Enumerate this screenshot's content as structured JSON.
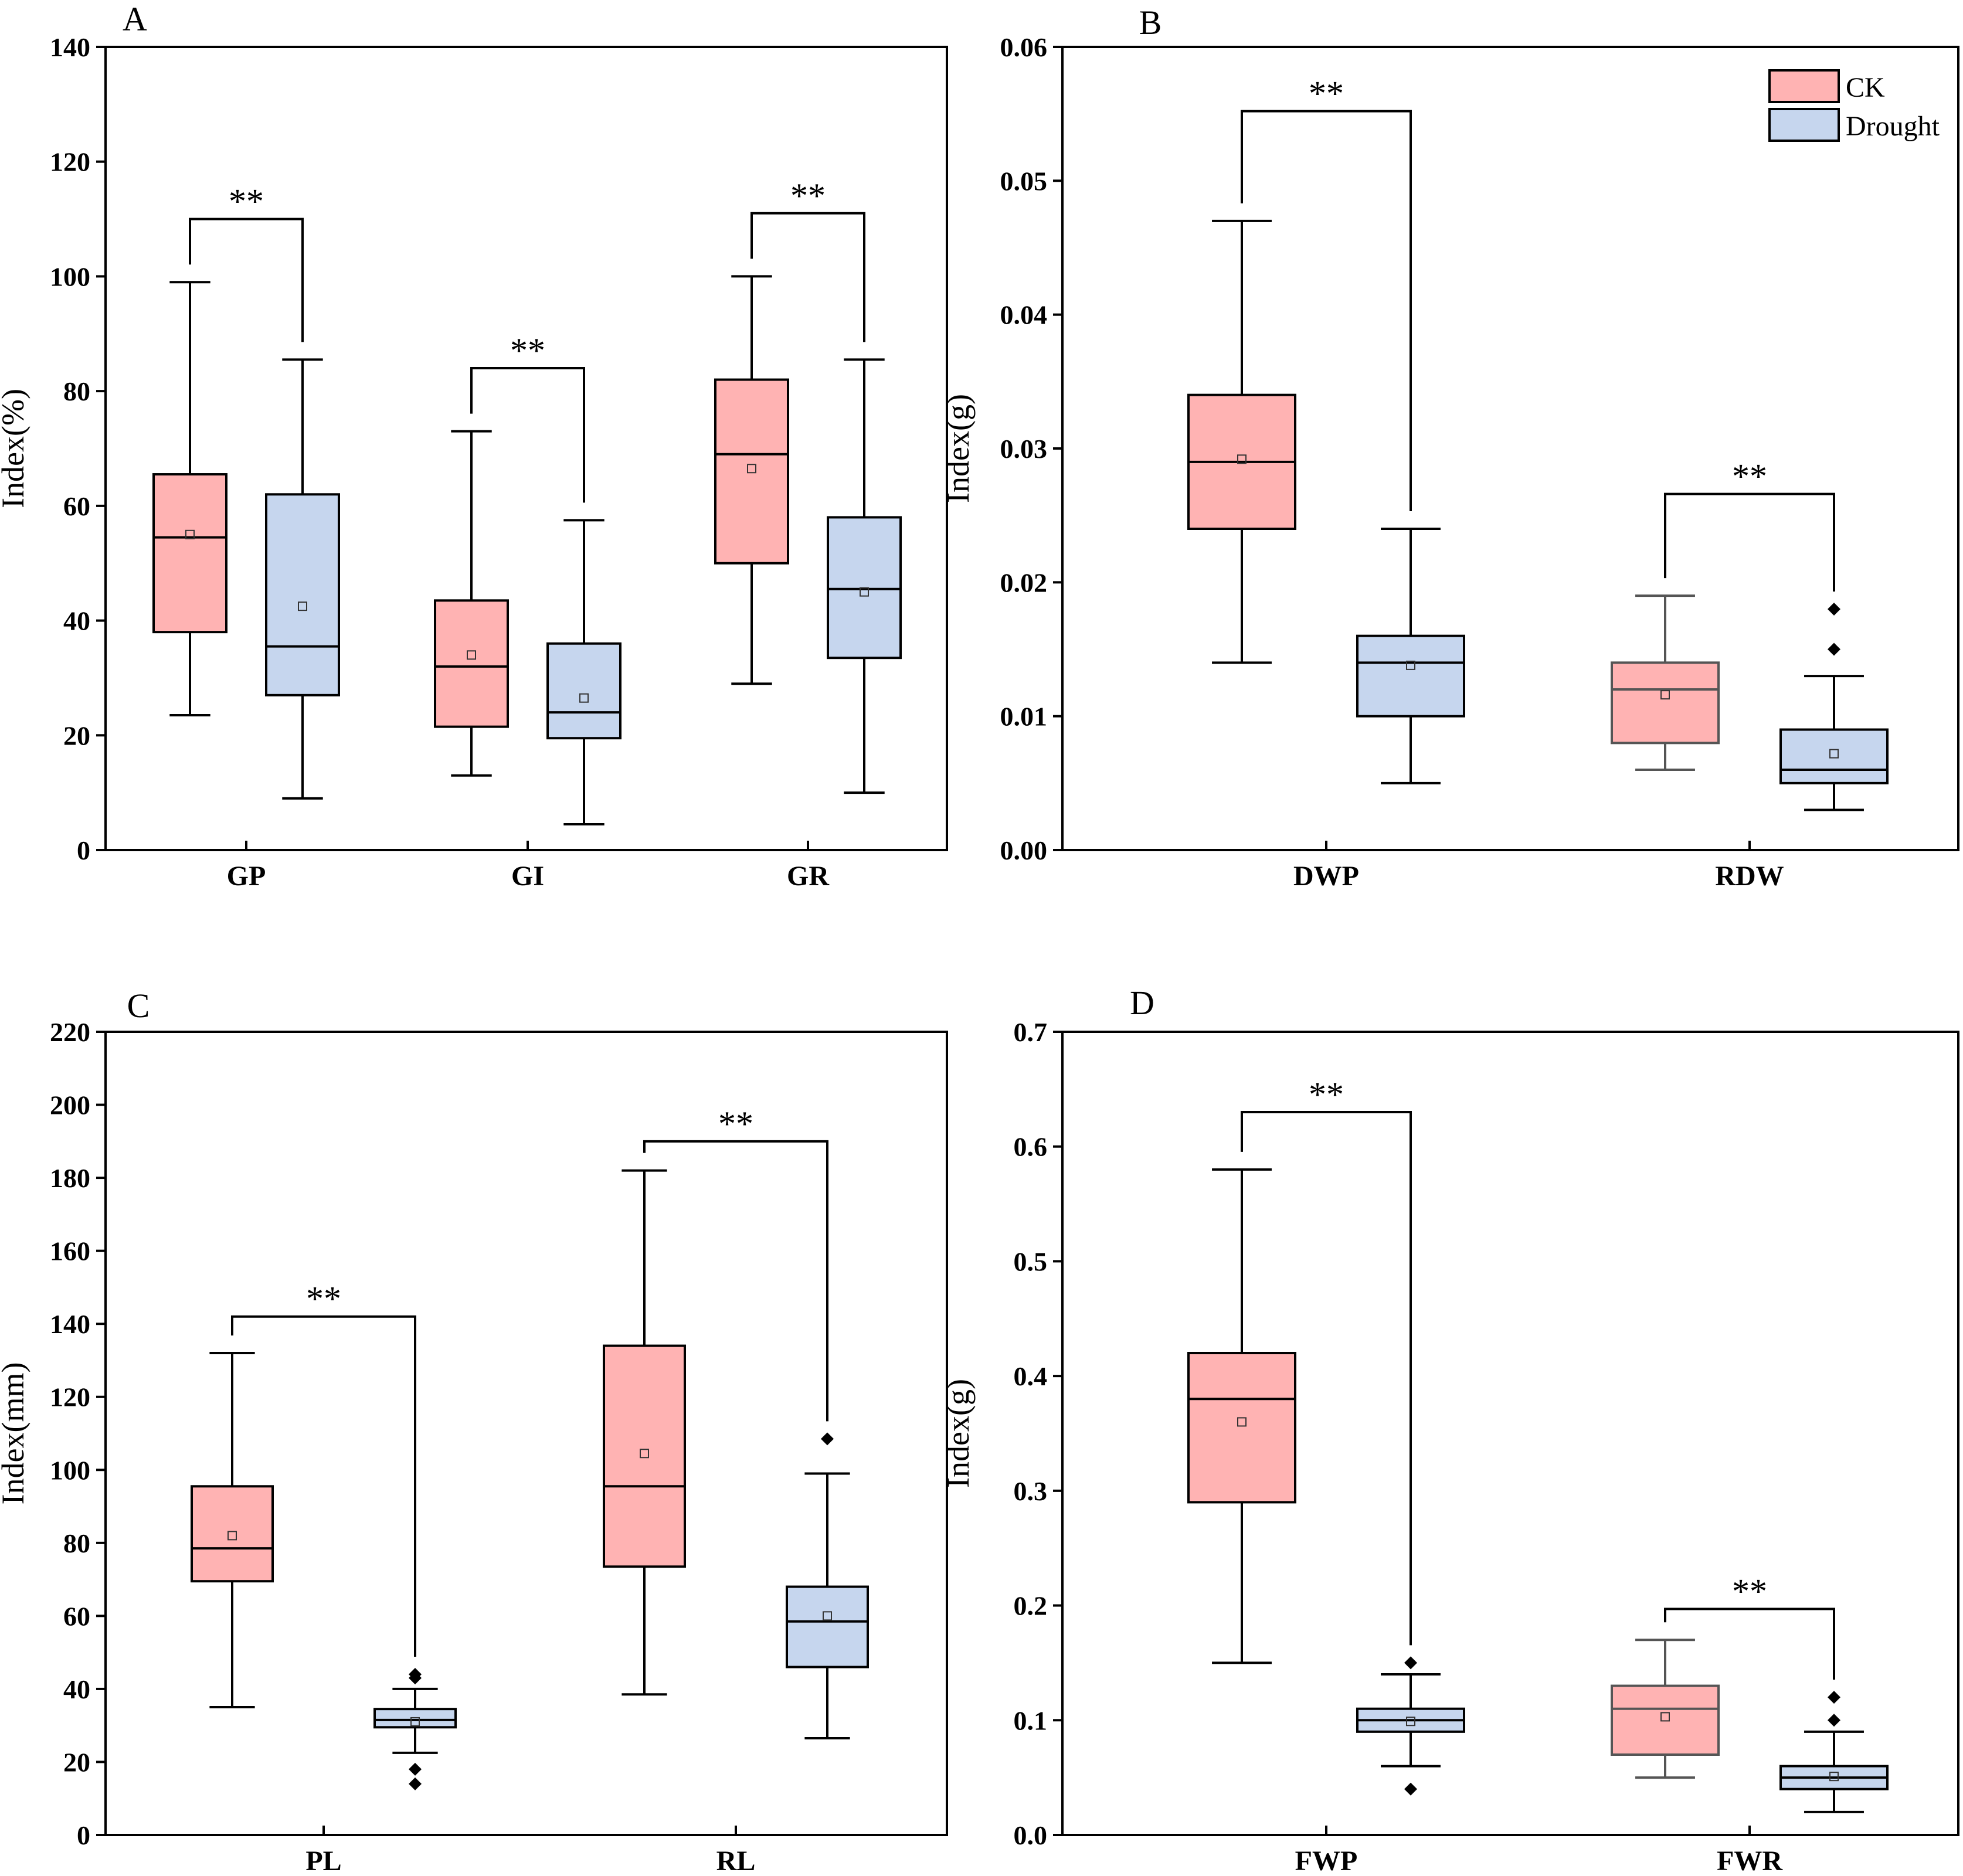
{
  "colors": {
    "ck": "#ffb3b3",
    "drought": "#c6d6ee",
    "line": "#000000",
    "rdw_fwr_ck_border": "#555555"
  },
  "legend": {
    "ck_label": "CK",
    "drought_label": "Drought"
  },
  "chart_data": [
    {
      "type": "box",
      "panel": "A",
      "ylabel": "Index(%)",
      "ylim": [
        0,
        140
      ],
      "yticks": [
        0,
        20,
        40,
        60,
        80,
        100,
        120,
        140
      ],
      "ytick_labels": [
        "0",
        "20",
        "40",
        "60",
        "80",
        "100",
        "120",
        "140"
      ],
      "categories": [
        "GP",
        "GI",
        "GR"
      ],
      "series": [
        {
          "name": "CK",
          "boxes": [
            {
              "min": 23.5,
              "q1": 38,
              "median": 54.5,
              "q3": 65.5,
              "max": 99,
              "mean": 55,
              "outliers": []
            },
            {
              "min": 13,
              "q1": 21.5,
              "median": 32,
              "q3": 43.5,
              "max": 73,
              "mean": 34,
              "outliers": []
            },
            {
              "min": 29,
              "q1": 50,
              "median": 69,
              "q3": 82,
              "max": 100,
              "mean": 66.5,
              "outliers": []
            }
          ]
        },
        {
          "name": "Drought",
          "boxes": [
            {
              "min": 9,
              "q1": 27,
              "median": 35.5,
              "q3": 62,
              "max": 85.5,
              "mean": 42.5,
              "outliers": []
            },
            {
              "min": 4.5,
              "q1": 19.5,
              "median": 24,
              "q3": 36,
              "max": 57.5,
              "mean": 26.5,
              "outliers": []
            },
            {
              "min": 10,
              "q1": 33.5,
              "median": 45.5,
              "q3": 58,
              "max": 85.5,
              "mean": 45,
              "outliers": []
            }
          ]
        }
      ],
      "significance": [
        {
          "label": "**",
          "bar_value": 110
        },
        {
          "label": "**",
          "bar_value": 84
        },
        {
          "label": "**",
          "bar_value": 111
        }
      ]
    },
    {
      "type": "box",
      "panel": "B",
      "ylabel": "Index(g)",
      "ylim": [
        0,
        0.06
      ],
      "yticks": [
        0,
        0.01,
        0.02,
        0.03,
        0.04,
        0.05,
        0.06
      ],
      "ytick_labels": [
        "0.00",
        "0.01",
        "0.02",
        "0.03",
        "0.04",
        "0.05",
        "0.06"
      ],
      "categories": [
        "DWP",
        "RDW"
      ],
      "legend_position": "top-right",
      "series": [
        {
          "name": "CK",
          "boxes": [
            {
              "min": 0.014,
              "q1": 0.024,
              "median": 0.029,
              "q3": 0.034,
              "max": 0.047,
              "mean": 0.0292,
              "outliers": []
            },
            {
              "min": 0.006,
              "q1": 0.008,
              "median": 0.012,
              "q3": 0.014,
              "max": 0.019,
              "mean": 0.0116,
              "outliers": []
            }
          ]
        },
        {
          "name": "Drought",
          "boxes": [
            {
              "min": 0.005,
              "q1": 0.01,
              "median": 0.014,
              "q3": 0.016,
              "max": 0.024,
              "mean": 0.0138,
              "outliers": []
            },
            {
              "min": 0.003,
              "q1": 0.005,
              "median": 0.006,
              "q3": 0.009,
              "max": 0.013,
              "mean": 0.0072,
              "outliers": [
                0.015,
                0.018
              ]
            }
          ]
        }
      ],
      "significance": [
        {
          "label": "**",
          "bar_value": 0.0552
        },
        {
          "label": "**",
          "bar_value": 0.0266
        }
      ]
    },
    {
      "type": "box",
      "panel": "C",
      "ylabel": "Index(mm)",
      "ylim": [
        0,
        220
      ],
      "yticks": [
        0,
        20,
        40,
        60,
        80,
        100,
        120,
        140,
        160,
        180,
        200,
        220
      ],
      "ytick_labels": [
        "0",
        "20",
        "40",
        "60",
        "80",
        "100",
        "120",
        "140",
        "160",
        "180",
        "200",
        "220"
      ],
      "categories": [
        "PL",
        "RL"
      ],
      "series": [
        {
          "name": "CK",
          "boxes": [
            {
              "min": 35,
              "q1": 69.5,
              "median": 78.5,
              "q3": 95.5,
              "max": 132,
              "mean": 82,
              "outliers": []
            },
            {
              "min": 38.5,
              "q1": 73.5,
              "median": 95.5,
              "q3": 134,
              "max": 182,
              "mean": 104.5,
              "outliers": []
            }
          ]
        },
        {
          "name": "Drought",
          "boxes": [
            {
              "min": 22.5,
              "q1": 29.5,
              "median": 31.5,
              "q3": 34.5,
              "max": 40,
              "mean": 31,
              "outliers": [
                14,
                18,
                43,
                44
              ]
            },
            {
              "min": 26.5,
              "q1": 46,
              "median": 58.5,
              "q3": 68,
              "max": 99,
              "mean": 60,
              "outliers": [
                108.5
              ]
            }
          ]
        }
      ],
      "significance": [
        {
          "label": "**",
          "bar_value": 142
        },
        {
          "label": "**",
          "bar_value": 190
        }
      ]
    },
    {
      "type": "box",
      "panel": "D",
      "ylabel": "Index(g)",
      "ylim": [
        0,
        0.7
      ],
      "yticks": [
        0,
        0.1,
        0.2,
        0.3,
        0.4,
        0.5,
        0.6,
        0.7
      ],
      "ytick_labels": [
        "0.0",
        "0.1",
        "0.2",
        "0.3",
        "0.4",
        "0.5",
        "0.6",
        "0.7"
      ],
      "categories": [
        "FWP",
        "FWR"
      ],
      "series": [
        {
          "name": "CK",
          "boxes": [
            {
              "min": 0.15,
              "q1": 0.29,
              "median": 0.38,
              "q3": 0.42,
              "max": 0.58,
              "mean": 0.36,
              "outliers": []
            },
            {
              "min": 0.05,
              "q1": 0.07,
              "median": 0.11,
              "q3": 0.13,
              "max": 0.17,
              "mean": 0.103,
              "outliers": []
            }
          ]
        },
        {
          "name": "Drought",
          "boxes": [
            {
              "min": 0.06,
              "q1": 0.09,
              "median": 0.1,
              "q3": 0.11,
              "max": 0.14,
              "mean": 0.099,
              "outliers": [
                0.04,
                0.15
              ]
            },
            {
              "min": 0.02,
              "q1": 0.04,
              "median": 0.05,
              "q3": 0.06,
              "max": 0.09,
              "mean": 0.051,
              "outliers": [
                0.1,
                0.12
              ]
            }
          ]
        }
      ],
      "significance": [
        {
          "label": "**",
          "bar_value": 0.63
        },
        {
          "label": "**",
          "bar_value": 0.197
        }
      ]
    }
  ]
}
